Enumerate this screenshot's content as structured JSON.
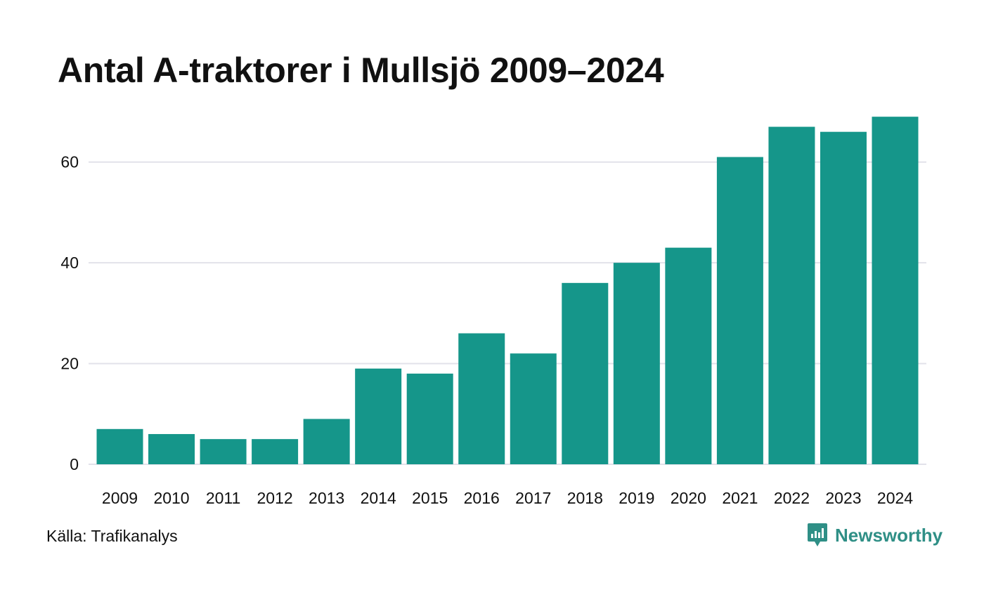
{
  "title": "Antal A-traktorer i Mullsjö 2009–2024",
  "source": "Källa: Trafikanalys",
  "brand": {
    "name": "Newsworthy",
    "icon": "newsworthy-logo-icon"
  },
  "colors": {
    "bar": "#15968a",
    "grid": "#e2e2ea",
    "text": "#111111",
    "brand": "#2f8f86"
  },
  "chart_data": {
    "type": "bar",
    "categories": [
      "2009",
      "2010",
      "2011",
      "2012",
      "2013",
      "2014",
      "2015",
      "2016",
      "2017",
      "2018",
      "2019",
      "2020",
      "2021",
      "2022",
      "2023",
      "2024"
    ],
    "values": [
      7,
      6,
      5,
      5,
      9,
      19,
      18,
      26,
      22,
      36,
      40,
      43,
      61,
      67,
      66,
      69
    ],
    "yticks": [
      0,
      20,
      40,
      60
    ],
    "ylim": [
      0,
      70
    ],
    "grid": true,
    "xlabel": "",
    "ylabel": ""
  }
}
